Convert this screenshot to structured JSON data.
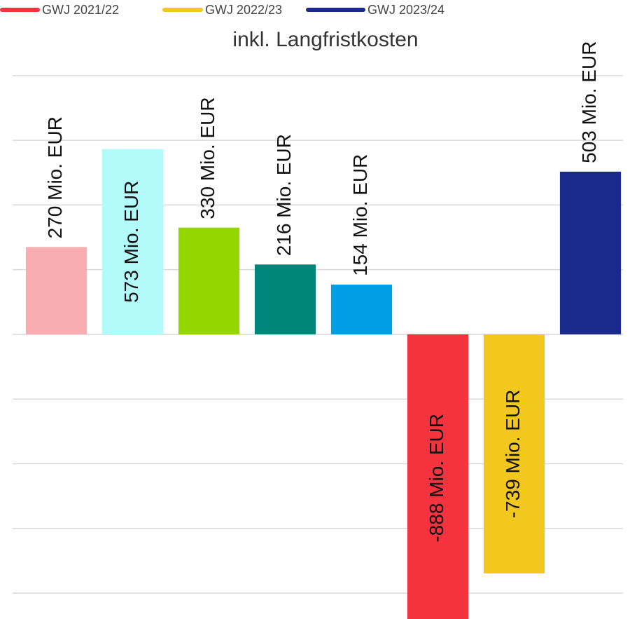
{
  "chart_data": {
    "type": "bar",
    "title": "inkl. Langfristkosten",
    "legend": [
      {
        "name": "GWJ 2021/22",
        "color": "#f5333f"
      },
      {
        "name": "GWJ 2022/23",
        "color": "#f2c81e"
      },
      {
        "name": "GWJ 2023/24",
        "color": "#1a2a8c"
      }
    ],
    "categories": [
      null,
      null,
      null,
      null,
      null,
      null,
      null,
      null
    ],
    "values": [
      270,
      573,
      330,
      216,
      154,
      -888,
      -739,
      503
    ],
    "value_labels": [
      "270 Mio. EUR",
      "573 Mio. EUR",
      "330 Mio. EUR",
      "216 Mio. EUR",
      "154 Mio. EUR",
      "-888 Mio. EUR",
      "-739 Mio. EUR",
      "503 Mio. EUR"
    ],
    "colors": [
      "#f9adb2",
      "#b3fbfb",
      "#94d600",
      "#00857a",
      "#009fe3",
      "#f5333f",
      "#f2c81e",
      "#1a2a8c"
    ],
    "ylim": [
      -880,
      820
    ],
    "yticks": [
      -800,
      -600,
      -400,
      -200,
      0,
      200,
      400,
      600,
      800
    ],
    "grid": true
  }
}
